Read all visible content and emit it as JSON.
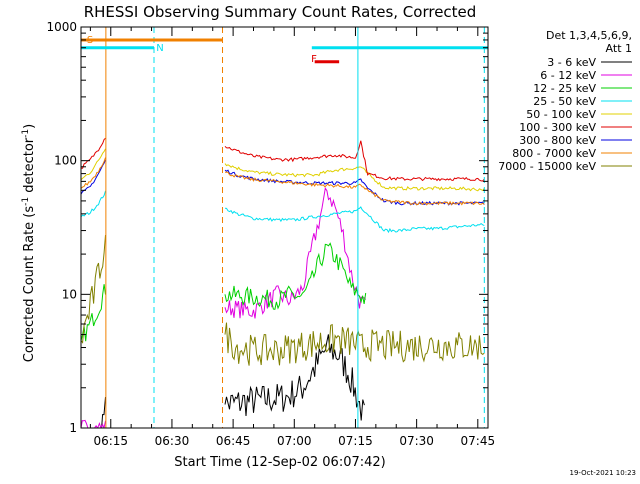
{
  "chart_data": {
    "type": "line",
    "title": "RHESSI Observing Summary Count Rates, Corrected",
    "xlabel": "Start Time (12-Sep-02 06:07:42)",
    "ylabel": "Corrected Count Rate (s",
    "ylabel_sup1": "-1",
    "ylabel_mid": " detector",
    "ylabel_sup2": "-1",
    "ylabel_end": ")",
    "y_scale": "log",
    "ylim": [
      1,
      1000
    ],
    "y_ticks": [
      1,
      10,
      100,
      1000
    ],
    "y_tick_labels": [
      "1",
      "10",
      "100",
      "1000"
    ],
    "x_range_minutes": [
      367.7,
      467.5
    ],
    "x_ticks": [
      375,
      390,
      405,
      420,
      435,
      450,
      465
    ],
    "x_tick_labels": [
      "06:15",
      "06:30",
      "06:45",
      "07:00",
      "07:15",
      "07:30",
      "07:45"
    ],
    "legend_header": [
      "Det 1,3,4,5,6,9,",
      "Att 1"
    ],
    "legend_position": "right",
    "timestamp": "19-Oct-2021 10:23",
    "colors": {
      "flag_s": "#f08000",
      "flag_n": "#00e0f0",
      "flag_f": "#e00000",
      "frame": "#000000"
    },
    "flags": [
      {
        "label": "S",
        "color": "#f08000",
        "start": 367.7,
        "end": 402.4,
        "level": 800
      },
      {
        "label": "N",
        "color": "#00e0f0",
        "start": 367.7,
        "end": 385.6,
        "level": 700
      },
      {
        "label": "N",
        "color": "#00e0f0",
        "start": 424.3,
        "end": 467.5,
        "level": 700
      },
      {
        "label": "F",
        "color": "#e00000",
        "start": 425.0,
        "end": 431.0,
        "level": 550
      }
    ],
    "flag_text": {
      "s": "S",
      "n": "N",
      "f": "F"
    },
    "vlines": [
      {
        "x": 373.8,
        "color": "#f08000",
        "style": "solid"
      },
      {
        "x": 385.6,
        "color": "#00e0f0",
        "style": "dashed"
      },
      {
        "x": 402.4,
        "color": "#f08000",
        "style": "dashed"
      },
      {
        "x": 435.6,
        "color": "#00e0f0",
        "style": "solid"
      },
      {
        "x": 466.6,
        "color": "#00e0f0",
        "style": "dashed"
      }
    ],
    "series": [
      {
        "name": "3 - 6 keV",
        "color": "#000000",
        "x": [
          372.5,
          373.0,
          373.7,
          403.0,
          410.0,
          418.0,
          422.0,
          425.0,
          428.0,
          431.0,
          433.5,
          436.0,
          437.2
        ],
        "y": [
          1.0,
          1.0,
          2.0,
          1.5,
          1.6,
          1.7,
          2.0,
          2.8,
          4.0,
          3.5,
          2.5,
          1.5,
          1.2
        ]
      },
      {
        "name": "6 - 12 keV",
        "color": "#e000e0",
        "x": [
          367.7,
          369.0,
          371.0,
          373.0,
          373.7,
          403.0,
          410.0,
          416.0,
          419.0,
          422.0,
          424.0,
          426.0,
          428.0,
          430.0,
          432.0,
          434.0,
          436.0,
          437.5
        ],
        "y": [
          1.0,
          1.0,
          1.0,
          1.0,
          1.0,
          8.0,
          7.5,
          10.0,
          9.0,
          11.0,
          20.0,
          35.0,
          60.0,
          45.0,
          28.0,
          14.0,
          9.0,
          8.0
        ]
      },
      {
        "name": "12 - 25 keV",
        "color": "#00d000",
        "x": [
          367.7,
          370.0,
          372.0,
          373.7,
          403.0,
          410.0,
          416.0,
          419.0,
          422.0,
          424.0,
          426.0,
          428.0,
          430.0,
          432.0,
          434.0,
          436.0,
          437.5
        ],
        "y": [
          4.5,
          6.0,
          8.0,
          11.0,
          10.0,
          9.5,
          9.0,
          10.0,
          9.5,
          12.0,
          17.0,
          22.0,
          19.0,
          15.0,
          11.0,
          10.0,
          9.0
        ]
      },
      {
        "name": "25 - 50 keV",
        "color": "#00e0f0",
        "x": [
          367.7,
          370.0,
          372.0,
          373.7,
          403.0,
          406.0,
          410.0,
          416.0,
          420.0,
          425.0,
          430.0,
          435.0,
          436.3,
          438.0,
          442.0,
          446.0,
          450.0,
          455.0,
          460.0,
          465.0,
          466.6
        ],
        "y": [
          38.0,
          41.0,
          48.0,
          58.0,
          44.0,
          40.0,
          37.0,
          36.0,
          36.0,
          38.0,
          40.0,
          42.0,
          45.0,
          40.0,
          30.0,
          30.0,
          31.0,
          31.0,
          32.0,
          33.0,
          33.0
        ]
      },
      {
        "name": "50 - 100 keV",
        "color": "#e0d000",
        "x": [
          367.7,
          370.0,
          372.0,
          373.7,
          403.0,
          406.0,
          410.0,
          416.0,
          420.0,
          425.0,
          430.0,
          435.0,
          436.3,
          438.0,
          442.0,
          446.0,
          450.0,
          455.0,
          460.0,
          465.0,
          466.6
        ],
        "y": [
          72.0,
          82.0,
          100.0,
          125.0,
          95.0,
          88.0,
          82.0,
          79.0,
          78.0,
          78.0,
          85.0,
          88.0,
          90.0,
          80.0,
          63.0,
          62.0,
          62.0,
          62.0,
          62.0,
          61.0,
          61.0
        ]
      },
      {
        "name": "100 - 300 keV",
        "color": "#e00000",
        "x": [
          367.7,
          370.0,
          372.0,
          373.7,
          403.0,
          406.0,
          410.0,
          416.0,
          420.0,
          425.0,
          430.0,
          435.0,
          436.3,
          437.0,
          438.0,
          442.0,
          446.0,
          450.0,
          455.0,
          460.0,
          465.0,
          466.6
        ],
        "y": [
          88.0,
          102.0,
          122.0,
          150.0,
          128.0,
          118.0,
          108.0,
          102.0,
          102.0,
          106.0,
          110.0,
          105.0,
          140.0,
          110.0,
          80.0,
          74.0,
          73.0,
          73.0,
          73.0,
          73.0,
          73.0,
          72.0
        ]
      },
      {
        "name": "300 - 800 keV",
        "color": "#0000e0",
        "x": [
          367.7,
          370.0,
          372.0,
          373.7,
          403.0,
          406.0,
          410.0,
          416.0,
          420.0,
          425.0,
          430.0,
          435.0,
          436.3,
          438.0,
          442.0,
          446.0,
          450.0,
          455.0,
          460.0,
          465.0,
          466.6
        ],
        "y": [
          56.0,
          64.0,
          80.0,
          100.0,
          85.0,
          78.0,
          73.0,
          70.0,
          69.0,
          68.0,
          68.0,
          68.0,
          72.0,
          62.0,
          50.0,
          48.0,
          48.0,
          48.0,
          48.0,
          48.0,
          48.0
        ]
      },
      {
        "name": "800 - 7000 keV",
        "color": "#f08000",
        "x": [
          367.7,
          370.0,
          372.0,
          373.7,
          403.0,
          406.0,
          410.0,
          416.0,
          420.0,
          425.0,
          430.0,
          435.0,
          436.3,
          438.0,
          442.0,
          446.0,
          450.0,
          455.0,
          460.0,
          465.0,
          466.6
        ],
        "y": [
          62.0,
          70.0,
          84.0,
          105.0,
          82.0,
          76.0,
          72.0,
          70.0,
          68.0,
          66.0,
          65.0,
          63.0,
          66.0,
          60.0,
          50.0,
          49.0,
          48.0,
          48.0,
          48.0,
          48.0,
          47.0
        ]
      },
      {
        "name": "7000 - 15000 keV",
        "color": "#808000",
        "x": [
          367.7,
          370.0,
          372.0,
          373.7,
          403.0,
          406.0,
          410.0,
          416.0,
          420.0,
          425.0,
          430.0,
          435.0,
          436.3,
          438.0,
          442.0,
          446.0,
          450.0,
          455.0,
          460.0,
          465.0,
          466.6
        ],
        "y": [
          4.5,
          8.0,
          14.0,
          25.0,
          5.0,
          4.0,
          3.8,
          3.8,
          4.0,
          4.3,
          4.6,
          4.3,
          4.0,
          4.2,
          4.1,
          4.1,
          4.1,
          4.2,
          4.1,
          4.1,
          4.0
        ]
      }
    ]
  }
}
